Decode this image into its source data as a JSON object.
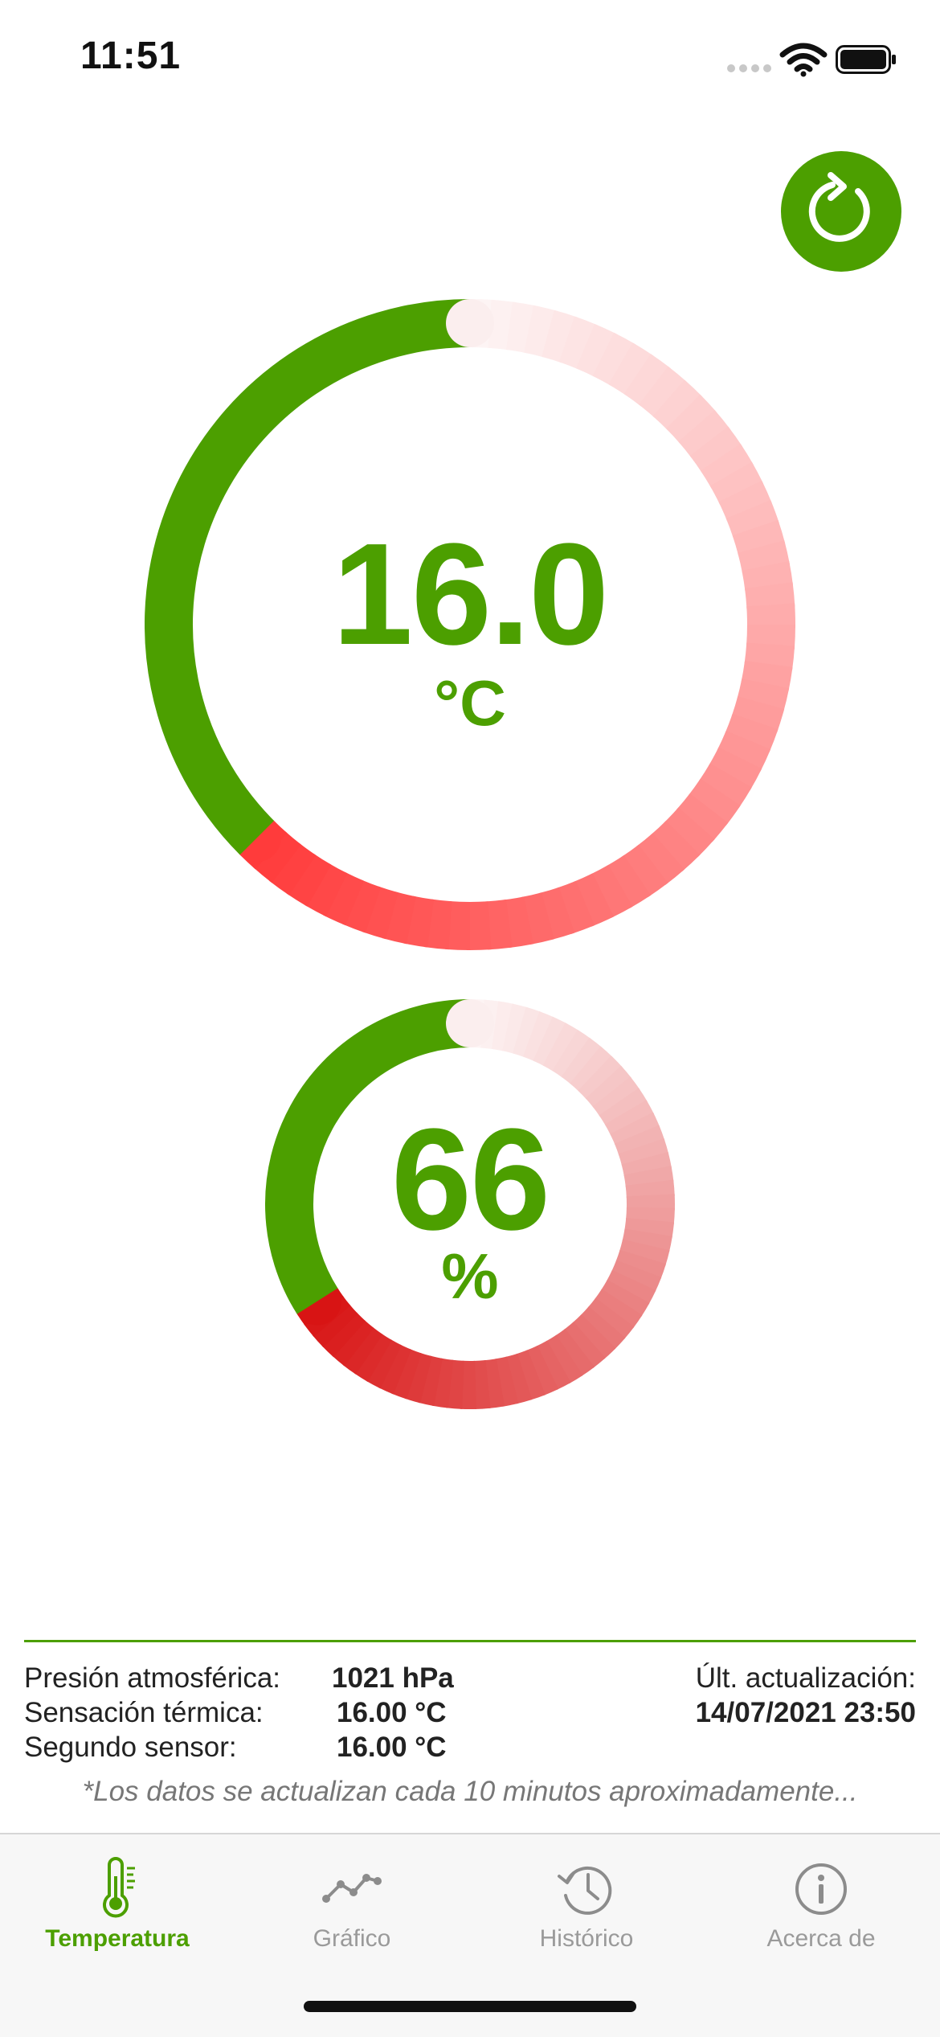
{
  "status_bar": {
    "time": "11:51",
    "signal_icon": "signal-dots-icon",
    "wifi_icon": "wifi-icon",
    "battery_icon": "battery-full-icon"
  },
  "refresh": {
    "icon": "refresh-icon"
  },
  "temperature": {
    "value": "16.0",
    "unit": "°C",
    "gauge_fraction": 0.625
  },
  "humidity": {
    "value": "66",
    "unit": "%",
    "gauge_fraction": 0.66
  },
  "colors": {
    "accent_green": "#4c9f00",
    "gauge_red": "#ff3b3b",
    "gauge_dark_red": "#d81414",
    "inactive_gray": "#9a9a9a"
  },
  "info": {
    "pressure_label": "Presión atmosférica:",
    "pressure_value": "1021 hPa",
    "feels_like_label": "Sensación térmica:",
    "feels_like_value": "16.00 °C",
    "second_sensor_label": "Segundo sensor:",
    "second_sensor_value": "16.00 °C",
    "last_update_label": "Últ. actualización:",
    "last_update_value": "14/07/2021 23:50",
    "footnote": "*Los datos se actualizan cada 10 minutos aproximadamente..."
  },
  "tabs": [
    {
      "label": "Temperatura",
      "icon": "thermometer-icon",
      "active": true
    },
    {
      "label": "Gráfico",
      "icon": "line-chart-icon",
      "active": false
    },
    {
      "label": "Histórico",
      "icon": "history-clock-icon",
      "active": false
    },
    {
      "label": "Acerca de",
      "icon": "info-icon",
      "active": false
    }
  ]
}
